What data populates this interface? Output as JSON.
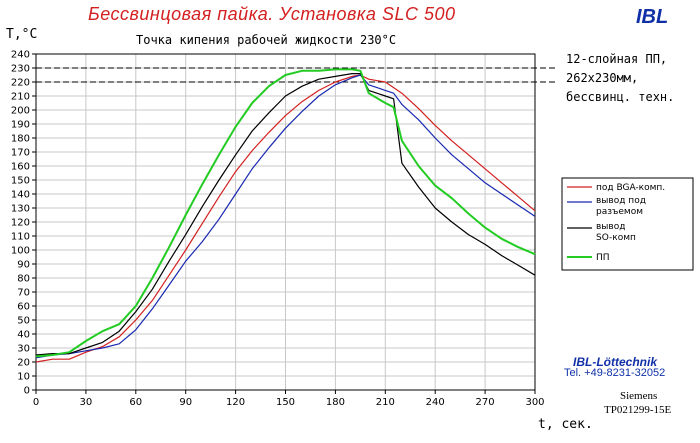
{
  "header": {
    "title": "Бессвинцовая пайка. Установка SLC 500",
    "logo": "IBL"
  },
  "info": {
    "line1": "12-слойная ПП,",
    "line2": "262х230мм,",
    "line3": "бессвинц. техн."
  },
  "footer": {
    "company": "IBL-Löttechnik",
    "tel": "Tel. +49-8231-32052",
    "siemens": "Siemens",
    "doc": "TP021299-15E"
  },
  "chart_data": {
    "type": "line",
    "title": "Точка кипения рабочей жидкости 230°C",
    "xlabel": "t, сек.",
    "ylabel": "T,°C",
    "xlim": [
      0,
      300
    ],
    "ylim": [
      0,
      240
    ],
    "xticks": [
      0,
      30,
      60,
      90,
      120,
      150,
      180,
      210,
      240,
      270,
      300
    ],
    "yticks": [
      0,
      10,
      20,
      30,
      40,
      50,
      60,
      70,
      80,
      90,
      100,
      110,
      120,
      130,
      140,
      150,
      160,
      170,
      180,
      190,
      200,
      210,
      220,
      230,
      240
    ],
    "grid": true,
    "reference_lines": [
      230,
      220
    ],
    "legend_position": "right",
    "series": [
      {
        "name": "под BGA-комп.",
        "color": "#d42020",
        "x": [
          0,
          10,
          20,
          30,
          40,
          50,
          60,
          70,
          80,
          90,
          100,
          110,
          120,
          130,
          140,
          150,
          160,
          170,
          180,
          190,
          195,
          200,
          210,
          220,
          230,
          240,
          250,
          260,
          270,
          280,
          290,
          300
        ],
        "y": [
          20,
          22,
          22,
          27,
          31,
          38,
          50,
          64,
          82,
          100,
          119,
          138,
          156,
          171,
          184,
          196,
          206,
          214,
          220,
          224,
          225,
          222,
          220,
          212,
          201,
          189,
          178,
          168,
          158,
          148,
          138,
          128
        ]
      },
      {
        "name": "вывод под разъемом",
        "color": "#1828b0",
        "x": [
          0,
          10,
          20,
          30,
          40,
          50,
          60,
          70,
          80,
          90,
          100,
          110,
          120,
          130,
          140,
          150,
          160,
          170,
          180,
          190,
          195,
          200,
          210,
          215,
          220,
          230,
          240,
          250,
          260,
          270,
          280,
          290,
          300
        ],
        "y": [
          23,
          25,
          26,
          28,
          30,
          33,
          43,
          58,
          75,
          92,
          106,
          122,
          140,
          158,
          173,
          187,
          199,
          210,
          218,
          223,
          225,
          218,
          214,
          212,
          204,
          193,
          180,
          168,
          158,
          148,
          140,
          132,
          124
        ]
      },
      {
        "name": "вывод SO-комп",
        "color": "#000000",
        "x": [
          0,
          10,
          20,
          30,
          40,
          50,
          60,
          70,
          80,
          90,
          100,
          110,
          120,
          130,
          140,
          150,
          160,
          170,
          180,
          190,
          195,
          200,
          210,
          215,
          220,
          230,
          240,
          250,
          260,
          270,
          280,
          290,
          300
        ],
        "y": [
          25,
          26,
          26,
          30,
          34,
          42,
          56,
          72,
          92,
          111,
          131,
          150,
          168,
          185,
          198,
          210,
          217,
          222,
          224,
          226,
          226,
          214,
          210,
          208,
          162,
          145,
          130,
          120,
          111,
          104,
          96,
          89,
          82
        ]
      },
      {
        "name": "ПП",
        "color": "#22cc22",
        "x": [
          0,
          10,
          20,
          30,
          40,
          50,
          60,
          70,
          80,
          90,
          100,
          110,
          120,
          130,
          140,
          150,
          160,
          170,
          180,
          190,
          195,
          200,
          210,
          215,
          220,
          230,
          240,
          250,
          260,
          270,
          280,
          290,
          300
        ],
        "y": [
          24,
          25,
          27,
          35,
          42,
          47,
          60,
          80,
          102,
          125,
          147,
          168,
          188,
          205,
          217,
          225,
          228,
          228,
          229,
          229,
          228,
          212,
          205,
          202,
          178,
          160,
          146,
          137,
          126,
          116,
          108,
          102,
          97
        ]
      }
    ]
  }
}
